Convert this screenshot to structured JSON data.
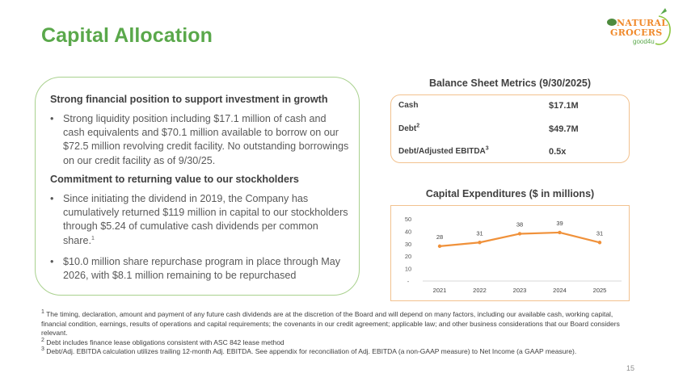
{
  "slide": {
    "title": "Capital Allocation",
    "page_number": "15"
  },
  "logo": {
    "line1": "NATURAL",
    "line2": "GROCERS",
    "line3": "good4u",
    "colors": {
      "orange": "#f0892a",
      "green": "#5aa84b"
    }
  },
  "left_panel": {
    "section1": {
      "heading": "Strong financial position to support investment in growth",
      "bullets": [
        "Strong liquidity position including $17.1 million of cash and cash equivalents and $70.1 million available to borrow on our $72.5 million revolving credit facility. No outstanding borrowings on our credit facility as of 9/30/25."
      ]
    },
    "section2": {
      "heading": "Commitment to returning value to our stockholders",
      "bullets": [
        "Since initiating the dividend in 2019, the Company has cumulatively returned $119 million in capital to our stockholders through $5.24 of cumulative cash dividends per common share.",
        "$10.0 million share repurchase program in place through May 2026, with $8.1 million remaining to be repurchased"
      ],
      "bullet1_footnote": "1"
    },
    "bullet_glyph": "•"
  },
  "balance_sheet": {
    "title": "Balance Sheet Metrics (9/30/2025)",
    "rows": [
      {
        "label": "Cash",
        "sup": "",
        "value": "$17.1M"
      },
      {
        "label": "Debt",
        "sup": "2",
        "value": "$49.7M"
      },
      {
        "label": "Debt/Adjusted EBITDA",
        "sup": "3",
        "value": "0.5x"
      }
    ]
  },
  "capex": {
    "title": "Capital Expenditures ($ in millions)"
  },
  "chart_data": {
    "type": "line",
    "title": "Capital Expenditures ($ in millions)",
    "categories": [
      "2021",
      "2022",
      "2023",
      "2024",
      "2025"
    ],
    "series": [
      {
        "name": "Capital Expenditures",
        "values": [
          28,
          31,
          38,
          39,
          31
        ],
        "color": "#f0913a"
      }
    ],
    "data_labels": [
      "28",
      "31",
      "38",
      "39",
      "31"
    ],
    "y_ticks": [
      "-",
      "10",
      "20",
      "30",
      "40",
      "50"
    ],
    "ylim": [
      0,
      50
    ],
    "xlabel": "",
    "ylabel": "",
    "grid": false,
    "legend": "none"
  },
  "footnotes": [
    {
      "num": "1",
      "text": " The timing, declaration, amount and payment of any future cash dividends are at the discretion of the Board and will depend on many factors, including our available cash, working capital, financial condition, earnings, results of operations and capital requirements; the covenants in our credit agreement; applicable law; and other business considerations that our Board considers relevant."
    },
    {
      "num": "2",
      "text": " Debt includes finance lease obligations consistent with ASC 842 lease method"
    },
    {
      "num": "3",
      "text": " Debt/Adj. EBITDA calculation utilizes trailing 12-month Adj. EBITDA. See appendix for reconciliation of Adj. EBITDA (a non-GAAP measure) to Net Income (a GAAP measure)."
    }
  ]
}
